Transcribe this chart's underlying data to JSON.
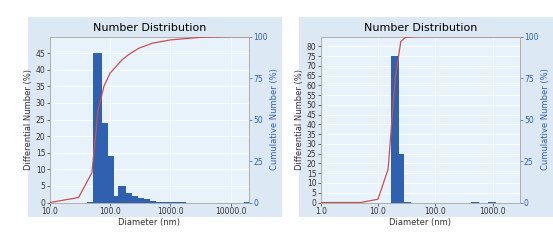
{
  "title": "Number Distribution",
  "xlabel": "Diameter (nm)",
  "ylabel_left": "Differential Number (%)",
  "ylabel_right": "Cumulative Number (%)",
  "fig_bg": "#f0f4f8",
  "panel_bg": "#dce8f4",
  "plot_bg": "#e8f2fb",
  "chart1": {
    "bar_centers": [
      50,
      63,
      79,
      100,
      126,
      158,
      200,
      251,
      316,
      398,
      501,
      631,
      794,
      1000,
      1259,
      1585,
      19953
    ],
    "bar_heights": [
      0.3,
      45,
      24,
      14,
      2,
      5,
      3,
      2,
      1.5,
      1,
      0.5,
      0.3,
      0.2,
      0.1,
      0.05,
      0.02,
      0.3
    ],
    "cum_x": [
      10,
      30,
      50,
      63,
      79,
      100,
      126,
      158,
      200,
      300,
      500,
      1000,
      3000,
      10000,
      20000
    ],
    "cum_y": [
      0,
      3,
      18,
      55,
      70,
      78,
      82,
      86,
      89,
      93,
      96,
      98,
      99.5,
      100,
      100
    ],
    "xlim_log": [
      10,
      20000
    ],
    "ylim_left": [
      0,
      50
    ],
    "ylim_right": [
      0,
      100
    ],
    "yticks_left": [
      0,
      5,
      10,
      15,
      20,
      25,
      30,
      35,
      40,
      45
    ],
    "yticks_right": [
      0,
      25,
      50,
      75,
      100
    ],
    "xtick_labels": [
      "10.0",
      "100.0",
      "1000.0",
      "10000.0"
    ],
    "xtick_vals": [
      10,
      100,
      1000,
      10000
    ]
  },
  "chart2": {
    "bar_centers": [
      20,
      25,
      32,
      500,
      1000
    ],
    "bar_heights": [
      75,
      25,
      0.5,
      0.05,
      0.02
    ],
    "cum_x": [
      1,
      5,
      10,
      15,
      18,
      20,
      25,
      30,
      50,
      100,
      300,
      1000,
      3000
    ],
    "cum_y": [
      0,
      0,
      2,
      20,
      55,
      75,
      97,
      99.5,
      100,
      100,
      100,
      100,
      100
    ],
    "xlim_log": [
      1,
      3000
    ],
    "ylim_left": [
      0,
      85
    ],
    "ylim_right": [
      0,
      100
    ],
    "yticks_left": [
      0,
      5,
      10,
      15,
      20,
      25,
      30,
      35,
      40,
      45,
      50,
      55,
      60,
      65,
      70,
      75,
      80
    ],
    "yticks_right": [
      0,
      25,
      50,
      75,
      100
    ],
    "xtick_labels": [
      "1.0",
      "10.0",
      "100.0",
      "1000.0"
    ],
    "xtick_vals": [
      1,
      10,
      100,
      1000
    ]
  },
  "bar_color": "#3060b0",
  "cum_color": "#c85050",
  "title_fontsize": 8,
  "axis_fontsize": 6,
  "tick_fontsize": 5.5
}
